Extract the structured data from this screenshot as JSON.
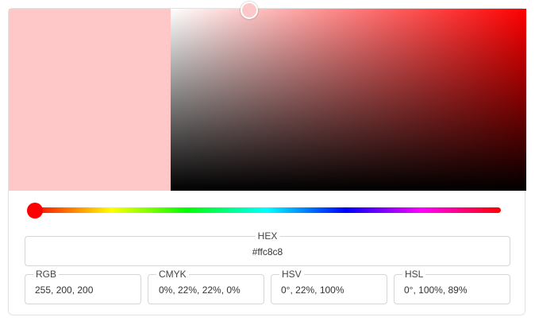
{
  "color": {
    "current": "#ffc8c8",
    "hue": "#ff0000"
  },
  "fields": {
    "hex": {
      "label": "HEX",
      "value": "#ffc8c8"
    },
    "rgb": {
      "label": "RGB",
      "value": "255, 200, 200"
    },
    "cmyk": {
      "label": "CMYK",
      "value": "0%, 22%, 22%, 0%"
    },
    "hsv": {
      "label": "HSV",
      "value": "0°, 22%, 100%"
    },
    "hsl": {
      "label": "HSL",
      "value": "0°, 100%, 89%"
    }
  },
  "sliders": {
    "hue_degrees": 0,
    "saturation_percent": 22,
    "value_percent": 100
  }
}
